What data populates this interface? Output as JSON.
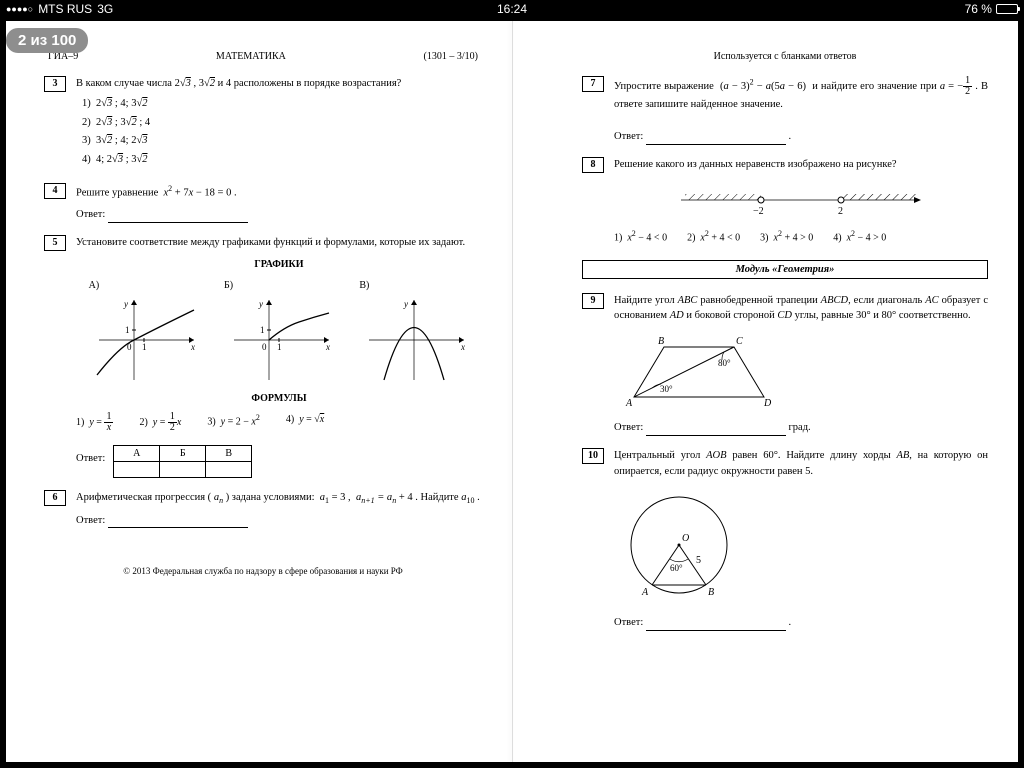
{
  "status": {
    "carrier": "MTS RUS",
    "network": "3G",
    "time": "16:24",
    "battery_pct": "76 %",
    "battery_fill_pct": 76
  },
  "page_counter": "2 из 100",
  "left": {
    "hdr_left": "ГИА–9",
    "hdr_center": "МАТЕМАТИКА",
    "hdr_right": "(1301 – 3/10)",
    "q3": {
      "num": "3",
      "text": "В каком случае числа 2√3 , 3√2 и 4 расположены в порядке возрастания?",
      "opts": [
        "1)  2√3 ; 4; 3√2",
        "2)  2√3 ; 3√2 ; 4",
        "3)  3√2 ; 4; 2√3",
        "4)  4; 2√3 ; 3√2"
      ]
    },
    "q4": {
      "num": "4",
      "text": "Решите уравнение  x² + 7x − 18 = 0 .",
      "answer_label": "Ответ:"
    },
    "q5": {
      "num": "5",
      "text": "Установите соответствие между графиками функций и формулами, которые их задают.",
      "graphs_title": "ГРАФИКИ",
      "labels": [
        "А)",
        "Б)",
        "В)"
      ],
      "formulas_title": "ФОРМУЛЫ",
      "formulas": [
        "1)  y = 1/x",
        "2)  y = ½ x",
        "3)  y = 2 − x²",
        "4)  y = √x"
      ],
      "table_head": [
        "А",
        "Б",
        "В"
      ],
      "answer_label": "Ответ:"
    },
    "q6": {
      "num": "6",
      "text": "Арифметическая прогрессия ( aₙ ) задана условиями:  a₁ = 3 ,  aₙ₊₁ = aₙ + 4 . Найдите a₁₀ .",
      "answer_label": "Ответ:"
    },
    "copyright": "© 2013 Федеральная служба по надзору в сфере образования и науки РФ"
  },
  "right": {
    "hdr_note": "Используется с бланками ответов",
    "q7": {
      "num": "7",
      "text_a": "Упростите выражение  (a − 3)² − a(5a − 6)  и найдите его значение при",
      "text_b": ". В ответе запишите найденное значение.",
      "a_eq": "a = −",
      "answer_label": "Ответ:"
    },
    "q8": {
      "num": "8",
      "text": "Решение какого из данных неравенств изображено на рисунке?",
      "marks": [
        "−2",
        "2"
      ],
      "opts": [
        "1)  x² − 4 < 0",
        "2)  x² + 4 < 0",
        "3)  x² + 4 > 0",
        "4)  x² − 4 > 0"
      ]
    },
    "module": "Модуль «Геометрия»",
    "q9": {
      "num": "9",
      "text": "Найдите угол ABC равнобедренной трапеции ABCD, если диагональ AC образует с основанием AD и боковой стороной CD углы, равные 30° и 80° соответственно.",
      "labels": {
        "A": "A",
        "B": "B",
        "C": "C",
        "D": "D",
        "a30": "30°",
        "a80": "80°"
      },
      "answer_label": "Ответ:",
      "unit": "град."
    },
    "q10": {
      "num": "10",
      "text": "Центральный угол AOB равен 60°. Найдите длину хорды AB, на которую он опирается, если радиус окружности равен 5.",
      "labels": {
        "O": "O",
        "A": "A",
        "B": "B",
        "ang": "60°",
        "r": "5"
      },
      "answer_label": "Ответ:"
    }
  },
  "colors": {
    "page_bg": "#ffffff",
    "text": "#000000",
    "counter_bg": "#8e8e8e",
    "sep": "#dddddd"
  }
}
